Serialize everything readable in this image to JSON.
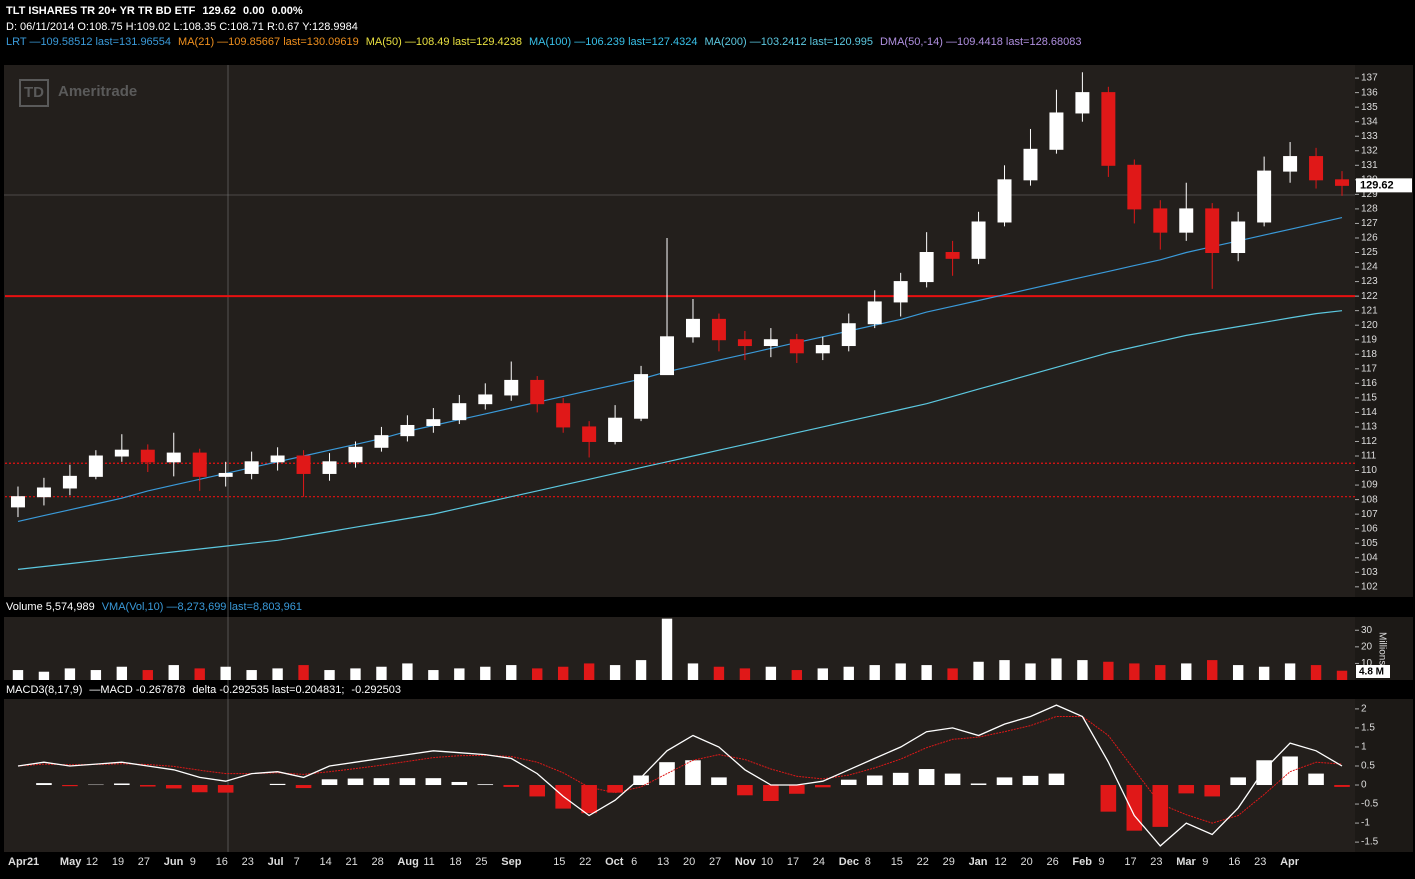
{
  "header": {
    "symbol": "TLT ISHARES TR 20+ YR TR BD ETF",
    "change": "0.00",
    "change_pct": "0.00%",
    "info": "D: 06/11/2014 O:108.75 H:109.02 L:108.35 C:108.71 R:0.67 Y:128.9984",
    "studies": [
      {
        "text": "LRT —109.58512 last=131.96554",
        "color": "#3a9ad9"
      },
      {
        "text": "MA(21) —109.85667 last=130.09619",
        "color": "#f0901e"
      },
      {
        "text": "MA(50) —108.49 last=129.4238",
        "color": "#e8e040"
      },
      {
        "text": "MA(100) —106.239 last=127.4324",
        "color": "#38c0e8"
      },
      {
        "text": "MA(200) —103.2412 last=120.995",
        "color": "#5cc8e0"
      },
      {
        "text": "DMA(50,-14) —109.4418 last=128.68083",
        "color": "#b090e0"
      }
    ]
  },
  "chart_data": [
    {
      "type": "candlestick",
      "watermark_logo": "TD",
      "watermark": "Ameritrade",
      "up_color": "#ffffff",
      "down_color": "#e01818",
      "categories": [
        "Apr21",
        null,
        "May",
        "12",
        "19",
        "27",
        "Jun",
        "9",
        "16",
        "23",
        "Jul",
        "7",
        "14",
        "21",
        "28",
        "Aug",
        "11",
        "18",
        "25",
        "Sep",
        null,
        "15",
        "22",
        "Oct",
        "6",
        "13",
        "20",
        "27",
        "Nov",
        "10",
        "17",
        "24",
        "Dec",
        "8",
        "15",
        "22",
        "29",
        "Jan",
        "12",
        "20",
        "26",
        "Feb",
        "9",
        "17",
        "23",
        "Mar",
        "9",
        "16",
        "23",
        "Apr",
        null,
        null
      ],
      "open": [
        107.5,
        108.2,
        108.8,
        109.6,
        111.0,
        111.4,
        110.6,
        111.2,
        109.6,
        109.8,
        110.6,
        111.0,
        109.8,
        110.6,
        111.6,
        112.4,
        113.1,
        113.5,
        114.6,
        115.2,
        116.2,
        114.6,
        113.0,
        112.0,
        113.6,
        116.6,
        119.2,
        120.4,
        119.0,
        118.6,
        119.0,
        118.1,
        118.6,
        120.1,
        121.6,
        123.0,
        125.0,
        124.6,
        127.1,
        130.0,
        132.1,
        134.6,
        136.0,
        131.0,
        128.0,
        126.4,
        128.0,
        125.0,
        127.1,
        130.6,
        131.6,
        130.0
      ],
      "high": [
        108.9,
        109.5,
        110.4,
        111.4,
        112.5,
        111.8,
        112.6,
        111.5,
        110.6,
        111.3,
        111.6,
        111.4,
        111.2,
        112.0,
        113.0,
        113.8,
        114.3,
        115.2,
        116.0,
        117.5,
        116.5,
        115.0,
        113.4,
        114.5,
        117.2,
        126.0,
        121.8,
        120.8,
        119.6,
        119.8,
        119.4,
        119.2,
        120.8,
        122.4,
        123.6,
        126.4,
        125.8,
        127.8,
        131.0,
        133.5,
        136.2,
        137.4,
        136.4,
        131.4,
        128.6,
        129.8,
        128.4,
        127.8,
        131.6,
        132.6,
        132.2,
        130.6
      ],
      "low": [
        106.8,
        107.6,
        108.3,
        109.4,
        110.6,
        109.9,
        109.6,
        108.6,
        108.9,
        109.4,
        110.0,
        108.2,
        109.3,
        110.2,
        111.3,
        112.0,
        112.6,
        113.2,
        114.2,
        114.8,
        114.0,
        112.6,
        110.9,
        111.8,
        113.4,
        116.8,
        118.8,
        118.2,
        117.6,
        117.8,
        117.4,
        117.6,
        118.2,
        119.8,
        120.6,
        122.6,
        123.4,
        124.2,
        126.8,
        129.6,
        131.8,
        134.0,
        130.2,
        127.0,
        125.2,
        125.8,
        122.5,
        124.4,
        126.8,
        129.8,
        129.4,
        128.9
      ],
      "close": [
        108.2,
        108.8,
        109.6,
        111.0,
        111.4,
        110.6,
        111.2,
        109.6,
        109.8,
        110.6,
        111.0,
        109.8,
        110.6,
        111.6,
        112.4,
        113.1,
        113.5,
        114.6,
        115.2,
        116.2,
        114.6,
        113.0,
        112.0,
        113.6,
        116.6,
        119.2,
        120.4,
        119.0,
        118.6,
        119.0,
        118.1,
        118.6,
        120.1,
        121.6,
        123.0,
        125.0,
        124.6,
        127.1,
        130.0,
        132.1,
        134.6,
        136.0,
        131.0,
        128.0,
        126.4,
        128.0,
        125.0,
        127.1,
        130.6,
        131.6,
        130.0,
        129.62
      ],
      "series": [
        {
          "name": "LRT",
          "color": "#3a9ad9",
          "values": [
            106.5,
            106.9,
            107.3,
            107.7,
            108.1,
            108.6,
            109.0,
            109.4,
            109.8,
            110.2,
            110.6,
            111.0,
            111.4,
            111.8,
            112.2,
            112.7,
            113.1,
            113.5,
            113.9,
            114.3,
            114.7,
            115.1,
            115.5,
            115.9,
            116.3,
            116.8,
            117.2,
            117.6,
            118.0,
            118.4,
            118.8,
            119.2,
            119.6,
            120.0,
            120.4,
            120.9,
            121.3,
            121.7,
            122.1,
            122.5,
            122.9,
            123.3,
            123.7,
            124.1,
            124.5,
            125.0,
            125.4,
            125.8,
            126.2,
            126.6,
            127.0,
            127.4
          ]
        },
        {
          "name": "MA(200)",
          "color": "#5cc8e0",
          "values": [
            103.2,
            103.4,
            103.6,
            103.8,
            104.0,
            104.2,
            104.4,
            104.6,
            104.8,
            105.0,
            105.2,
            105.5,
            105.8,
            106.1,
            106.4,
            106.7,
            107.0,
            107.4,
            107.8,
            108.2,
            108.6,
            109.0,
            109.4,
            109.8,
            110.2,
            110.6,
            111.0,
            111.4,
            111.8,
            112.2,
            112.6,
            113.0,
            113.4,
            113.8,
            114.2,
            114.6,
            115.1,
            115.6,
            116.1,
            116.6,
            117.1,
            117.6,
            118.1,
            118.5,
            118.9,
            119.3,
            119.6,
            119.9,
            120.2,
            120.5,
            120.8,
            121.0
          ]
        }
      ],
      "hlines": [
        {
          "value": 122,
          "color": "#e81010",
          "style": "solid"
        },
        {
          "value": 110.5,
          "color": "#e81010",
          "style": "dotted"
        },
        {
          "value": 108.2,
          "color": "#e81010",
          "style": "dotted"
        }
      ],
      "ylim": [
        101.3,
        137.9
      ],
      "yticks": [
        102,
        103,
        104,
        105,
        106,
        107,
        108,
        109,
        110,
        111,
        112,
        113,
        114,
        115,
        116,
        117,
        118,
        119,
        120,
        121,
        122,
        123,
        124,
        125,
        126,
        127,
        128,
        129,
        130,
        131,
        132,
        133,
        134,
        135,
        136,
        137
      ]
    },
    {
      "type": "bar",
      "title": "Volume 5,574,989",
      "legend": [
        {
          "text": "VMA(Vol,10) —8,273,699 last=8,803,961",
          "color": "#3a9ad9"
        }
      ],
      "ylabel": "Millions",
      "marker_label": "4.8 M",
      "values": [
        6,
        5,
        7,
        6,
        8,
        6,
        9,
        7,
        8,
        6,
        7,
        9,
        6,
        7,
        8,
        10,
        6,
        7,
        8,
        9,
        7,
        8,
        10,
        9,
        12,
        37,
        10,
        8,
        7,
        8,
        6,
        7,
        8,
        9,
        10,
        9,
        7,
        11,
        12,
        10,
        13,
        12,
        11,
        10,
        9,
        10,
        12,
        9,
        8,
        10,
        9,
        5.6
      ],
      "ylim": [
        0,
        38
      ],
      "yticks": [
        10,
        20,
        30
      ]
    },
    {
      "type": "macd",
      "legend": [
        {
          "text": "MACD3(8,17,9)",
          "color": "#ffffff"
        },
        {
          "text": "—MACD -0.267878",
          "color": "#ffffff"
        },
        {
          "text": "delta -0.292535 last=0.204831;",
          "color": "#ffffff"
        },
        {
          "text": "-0.292503",
          "color": "#ffffff"
        }
      ],
      "macd_color": "#ffffff",
      "signal_color": "#e01818",
      "macd": [
        0.5,
        0.6,
        0.5,
        0.55,
        0.6,
        0.5,
        0.4,
        0.2,
        0.1,
        0.3,
        0.35,
        0.2,
        0.5,
        0.6,
        0.7,
        0.8,
        0.9,
        0.85,
        0.8,
        0.7,
        0.3,
        -0.3,
        -0.8,
        -0.4,
        0.2,
        0.9,
        1.3,
        1.0,
        0.4,
        0.0,
        0.0,
        0.1,
        0.4,
        0.7,
        1.0,
        1.4,
        1.5,
        1.3,
        1.6,
        1.8,
        2.1,
        1.8,
        0.6,
        -0.8,
        -1.6,
        -1.0,
        -1.3,
        -0.6,
        0.4,
        1.1,
        0.9,
        0.5
      ],
      "signal": [
        0.5,
        0.55,
        0.53,
        0.54,
        0.56,
        0.54,
        0.49,
        0.39,
        0.3,
        0.3,
        0.32,
        0.28,
        0.35,
        0.43,
        0.52,
        0.62,
        0.72,
        0.77,
        0.78,
        0.75,
        0.6,
        0.32,
        -0.06,
        -0.2,
        -0.05,
        0.3,
        0.65,
        0.8,
        0.67,
        0.42,
        0.23,
        0.16,
        0.26,
        0.45,
        0.68,
        0.98,
        1.2,
        1.26,
        1.4,
        1.56,
        1.8,
        1.8,
        1.3,
        0.4,
        -0.5,
        -0.78,
        -1.0,
        -0.8,
        -0.25,
        0.35,
        0.6,
        0.55
      ],
      "histogram": [
        0,
        0.05,
        -0.03,
        0.01,
        0.04,
        -0.04,
        -0.09,
        -0.19,
        -0.2,
        0,
        0.03,
        -0.08,
        0.15,
        0.17,
        0.18,
        0.18,
        0.18,
        0.08,
        0.02,
        -0.05,
        -0.3,
        -0.62,
        -0.74,
        -0.2,
        0.25,
        0.6,
        0.65,
        0.2,
        -0.27,
        -0.42,
        -0.23,
        -0.06,
        0.14,
        0.25,
        0.32,
        0.42,
        0.3,
        0.04,
        0.2,
        0.24,
        0.3,
        0,
        -0.7,
        -1.2,
        -1.1,
        -0.22,
        -0.3,
        0.2,
        0.65,
        0.75,
        0.3,
        -0.05
      ],
      "ylim": [
        -1.76,
        2.26
      ],
      "yticks": [
        2,
        1.5,
        1,
        0.5,
        0,
        -0.5,
        -1,
        -1.5
      ]
    }
  ]
}
